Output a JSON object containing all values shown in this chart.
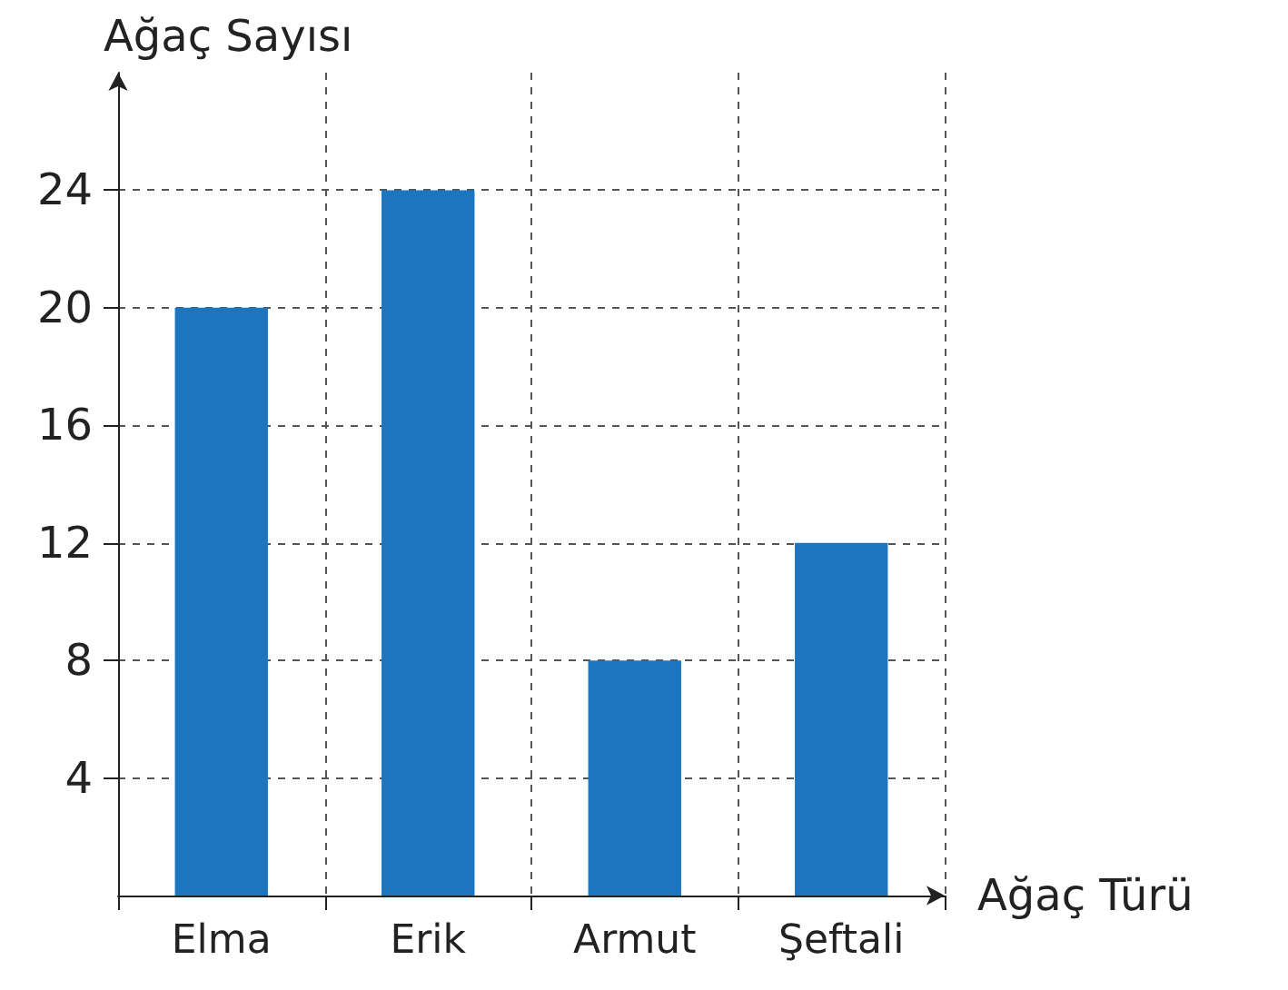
{
  "chart_data": {
    "type": "bar",
    "xlabel": "Ağaç Türü",
    "ylabel": "Ağaç Sayısı",
    "categories": [
      "Elma",
      "Erik",
      "Armut",
      "Şeftali"
    ],
    "values": [
      20,
      24,
      8,
      12
    ],
    "color": "#1b75bf",
    "ylim": [
      0,
      28
    ],
    "yticks": [
      4,
      8,
      12,
      16,
      20,
      24
    ],
    "grid": true
  }
}
